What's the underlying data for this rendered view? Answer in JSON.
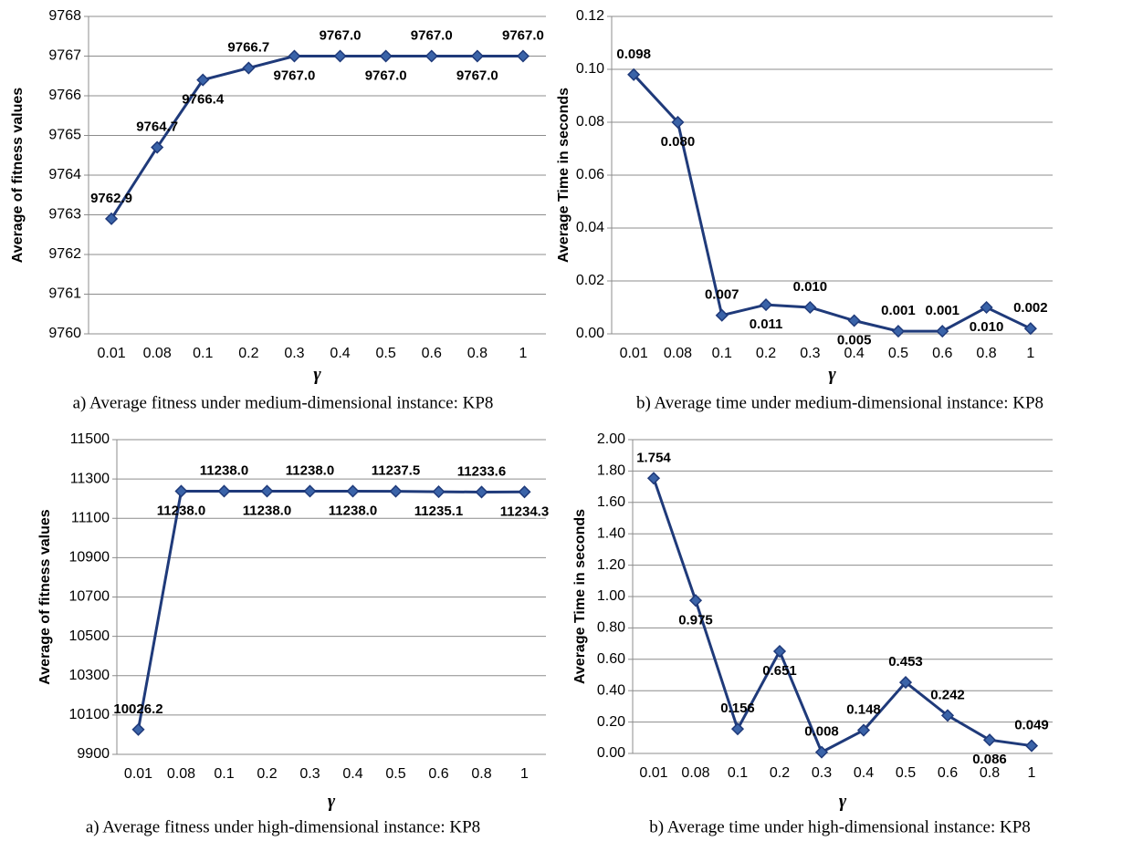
{
  "chart_data": [
    {
      "type": "line",
      "caption": "a) Average fitness under medium-dimensional instance: KP8",
      "x_label": "γ",
      "y_label": "Average of fitness values",
      "categories": [
        "0.01",
        "0.08",
        "0.1",
        "0.2",
        "0.3",
        "0.4",
        "0.5",
        "0.6",
        "0.8",
        "1"
      ],
      "values": [
        9762.9,
        9764.7,
        9766.4,
        9766.7,
        9767.0,
        9767.0,
        9767.0,
        9767.0,
        9767.0,
        9767.0
      ],
      "value_labels": [
        "9762.9",
        "9764.7",
        "9766.4",
        "9766.7",
        "9767.0",
        "9767.0",
        "9767.0",
        "9767.0",
        "9767.0",
        "9767.0"
      ],
      "color": "#1f3a7a",
      "ylim": [
        9760,
        9768
      ],
      "yticks": [
        9760,
        9761,
        9762,
        9763,
        9764,
        9765,
        9766,
        9767,
        9768
      ],
      "grid": true
    },
    {
      "type": "line",
      "caption": "b) Average time under medium-dimensional instance: KP8",
      "x_label": "γ",
      "y_label": "Average Time in seconds",
      "categories": [
        "0.01",
        "0.08",
        "0.1",
        "0.2",
        "0.3",
        "0.4",
        "0.5",
        "0.6",
        "0.8",
        "1"
      ],
      "values": [
        0.098,
        0.08,
        0.007,
        0.011,
        0.01,
        0.005,
        0.001,
        0.001,
        0.01,
        0.002
      ],
      "value_labels": [
        "0.098",
        "0.080",
        "0.007",
        "0.011",
        "0.010",
        "0.005",
        "0.001",
        "0.001",
        "0.010",
        "0.002"
      ],
      "color": "#1f3a7a",
      "ylim": [
        0,
        0.12
      ],
      "yticks": [
        {
          "value": 0,
          "label": "0.00"
        },
        {
          "value": 0.02,
          "label": "0.02"
        },
        {
          "value": 0.04,
          "label": "0.04"
        },
        {
          "value": 0.06,
          "label": "0.06"
        },
        {
          "value": 0.08,
          "label": "0.08"
        },
        {
          "value": 0.1,
          "label": "0.10"
        },
        {
          "value": 0.12,
          "label": "0.12"
        }
      ],
      "grid": true
    },
    {
      "type": "line",
      "caption": "a) Average fitness under high-dimensional instance: KP8",
      "x_label": "γ",
      "y_label": "Average of fitness values",
      "categories": [
        "0.01",
        "0.08",
        "0.1",
        "0.2",
        "0.3",
        "0.4",
        "0.5",
        "0.6",
        "0.8",
        "1"
      ],
      "values": [
        10026.2,
        11238.0,
        11238.0,
        11238.0,
        11238.0,
        11238.0,
        11237.5,
        11235.1,
        11233.6,
        11234.3
      ],
      "value_labels": [
        "10026.2",
        "11238.0",
        "11238.0",
        "11238.0",
        "11238.0",
        "11238.0",
        "11237.5",
        "11235.1",
        "11233.6",
        "11234.3"
      ],
      "color": "#1f3a7a",
      "ylim": [
        9900,
        11500
      ],
      "yticks": [
        9900,
        10100,
        10300,
        10500,
        10700,
        10900,
        11100,
        11300,
        11500
      ],
      "grid": true
    },
    {
      "type": "line",
      "caption": "b) Average time under high-dimensional instance: KP8",
      "x_label": "γ",
      "y_label": "Average Time in seconds",
      "categories": [
        "0.01",
        "0.08",
        "0.1",
        "0.2",
        "0.3",
        "0.4",
        "0.5",
        "0.6",
        "0.8",
        "1"
      ],
      "values": [
        1.754,
        0.975,
        0.156,
        0.651,
        0.008,
        0.148,
        0.453,
        0.242,
        0.086,
        0.049
      ],
      "value_labels": [
        "1.754",
        "0.975",
        "0.156",
        "0.651",
        "0.008",
        "0.148",
        "0.453",
        "0.242",
        "0.086",
        "0.049"
      ],
      "color": "#1f3a7a",
      "ylim": [
        0,
        2
      ],
      "yticks": [
        {
          "value": 0,
          "label": "0.00"
        },
        {
          "value": 0.2,
          "label": "0.20"
        },
        {
          "value": 0.4,
          "label": "0.40"
        },
        {
          "value": 0.6,
          "label": "0.60"
        },
        {
          "value": 0.8,
          "label": "0.80"
        },
        {
          "value": 1,
          "label": "1.00"
        },
        {
          "value": 1.2,
          "label": "1.20"
        },
        {
          "value": 1.4,
          "label": "1.40"
        },
        {
          "value": 1.6,
          "label": "1.60"
        },
        {
          "value": 1.8,
          "label": "1.80"
        },
        {
          "value": 2,
          "label": "2.00"
        }
      ],
      "grid": true
    }
  ]
}
